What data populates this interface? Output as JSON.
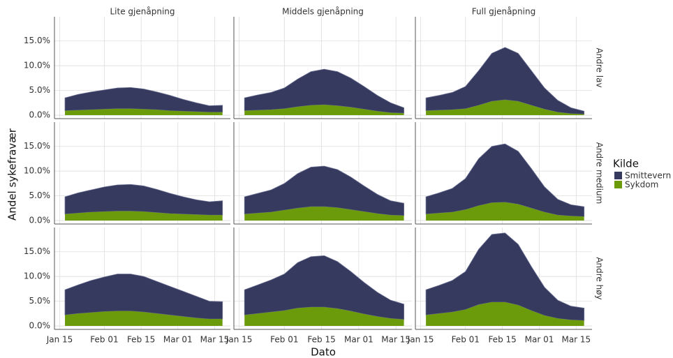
{
  "chart_data": {
    "type": "area",
    "y_label": "Andel sykefravær",
    "x_label": "Dato",
    "legend_title": "Kilde",
    "columns": [
      "Lite gjenåpning",
      "Middels gjenåpning",
      "Full gjenåpning"
    ],
    "rows": [
      "Andre lav",
      "Andre medium",
      "Andre høy"
    ],
    "series": [
      {
        "name": "Smittevern",
        "color": "#353a5e"
      },
      {
        "name": "Sykdom",
        "color": "#6b9a0b"
      }
    ],
    "x": [
      17,
      22,
      27,
      32,
      37,
      42,
      47,
      52,
      57,
      62,
      67,
      72,
      77
    ],
    "xlim": [
      13,
      80
    ],
    "xticks": [
      {
        "value": 15,
        "label": "Jan 15"
      },
      {
        "value": 32,
        "label": "Feb 01"
      },
      {
        "value": 46,
        "label": "Feb 15"
      },
      {
        "value": 60,
        "label": "Mar 01"
      },
      {
        "value": 74,
        "label": "Mar 15"
      }
    ],
    "ylim": [
      -0.7,
      19.9
    ],
    "yticks": [
      {
        "value": 0,
        "label": "0.0%"
      },
      {
        "value": 5,
        "label": "5.0%"
      },
      {
        "value": 10,
        "label": "10.0%"
      },
      {
        "value": 15,
        "label": "15.0%"
      }
    ],
    "grid": true,
    "panels": [
      [
        {
          "series": [
            [
              2.6,
              3.2,
              3.6,
              3.9,
              4.2,
              4.3,
              4.1,
              3.6,
              3.1,
              2.4,
              1.8,
              1.3,
              1.4
            ],
            [
              0.9,
              1.0,
              1.1,
              1.2,
              1.3,
              1.3,
              1.2,
              1.1,
              0.9,
              0.8,
              0.7,
              0.6,
              0.6
            ]
          ]
        },
        {
          "series": [
            [
              2.6,
              3.1,
              3.5,
              4.2,
              5.6,
              6.8,
              7.2,
              6.9,
              5.9,
              4.6,
              3.2,
              2.0,
              1.1
            ],
            [
              0.9,
              1.0,
              1.1,
              1.3,
              1.7,
              2.0,
              2.1,
              1.9,
              1.6,
              1.2,
              0.8,
              0.5,
              0.4
            ]
          ]
        },
        {
          "series": [
            [
              2.6,
              3.0,
              3.5,
              4.5,
              7.0,
              9.7,
              10.6,
              9.7,
              7.0,
              4.3,
              2.4,
              1.2,
              0.6
            ],
            [
              0.9,
              1.0,
              1.1,
              1.3,
              2.0,
              2.8,
              3.1,
              2.8,
              2.0,
              1.2,
              0.6,
              0.3,
              0.2
            ]
          ]
        }
      ],
      [
        {
          "series": [
            [
              3.5,
              4.1,
              4.5,
              5.0,
              5.3,
              5.4,
              5.2,
              4.7,
              4.1,
              3.5,
              3.0,
              2.7,
              2.9
            ],
            [
              1.3,
              1.5,
              1.7,
              1.8,
              1.9,
              1.9,
              1.8,
              1.6,
              1.4,
              1.3,
              1.2,
              1.1,
              1.1
            ]
          ]
        },
        {
          "series": [
            [
              3.5,
              4.0,
              4.5,
              5.4,
              7.0,
              8.0,
              8.2,
              7.7,
              6.6,
              5.2,
              3.9,
              2.9,
              2.5
            ],
            [
              1.3,
              1.5,
              1.7,
              2.1,
              2.5,
              2.8,
              2.8,
              2.6,
              2.2,
              1.8,
              1.4,
              1.1,
              1.0
            ]
          ]
        },
        {
          "series": [
            [
              3.5,
              4.1,
              4.8,
              6.3,
              9.5,
              11.4,
              11.8,
              10.7,
              8.0,
              5.1,
              3.2,
              2.3,
              2.0
            ],
            [
              1.3,
              1.5,
              1.7,
              2.2,
              3.0,
              3.6,
              3.7,
              3.3,
              2.5,
              1.7,
              1.1,
              0.9,
              0.8
            ]
          ]
        }
      ],
      [
        {
          "series": [
            [
              5.1,
              5.8,
              6.5,
              7.0,
              7.5,
              7.5,
              7.2,
              6.5,
              5.8,
              5.1,
              4.4,
              3.6,
              3.5
            ],
            [
              2.2,
              2.5,
              2.7,
              2.9,
              3.0,
              3.0,
              2.8,
              2.5,
              2.2,
              1.9,
              1.6,
              1.4,
              1.4
            ]
          ]
        },
        {
          "series": [
            [
              5.1,
              5.8,
              6.5,
              7.4,
              9.2,
              10.2,
              10.4,
              9.5,
              8.0,
              6.4,
              4.9,
              3.7,
              3.1
            ],
            [
              2.2,
              2.5,
              2.8,
              3.1,
              3.6,
              3.8,
              3.8,
              3.5,
              3.0,
              2.4,
              1.9,
              1.5,
              1.3
            ]
          ]
        },
        {
          "series": [
            [
              5.1,
              5.7,
              6.4,
              7.7,
              11.2,
              13.7,
              14.0,
              12.3,
              8.9,
              5.7,
              3.7,
              2.8,
              2.5
            ],
            [
              2.2,
              2.5,
              2.8,
              3.3,
              4.3,
              4.8,
              4.8,
              4.2,
              3.1,
              2.1,
              1.5,
              1.2,
              1.1
            ]
          ]
        }
      ]
    ]
  }
}
